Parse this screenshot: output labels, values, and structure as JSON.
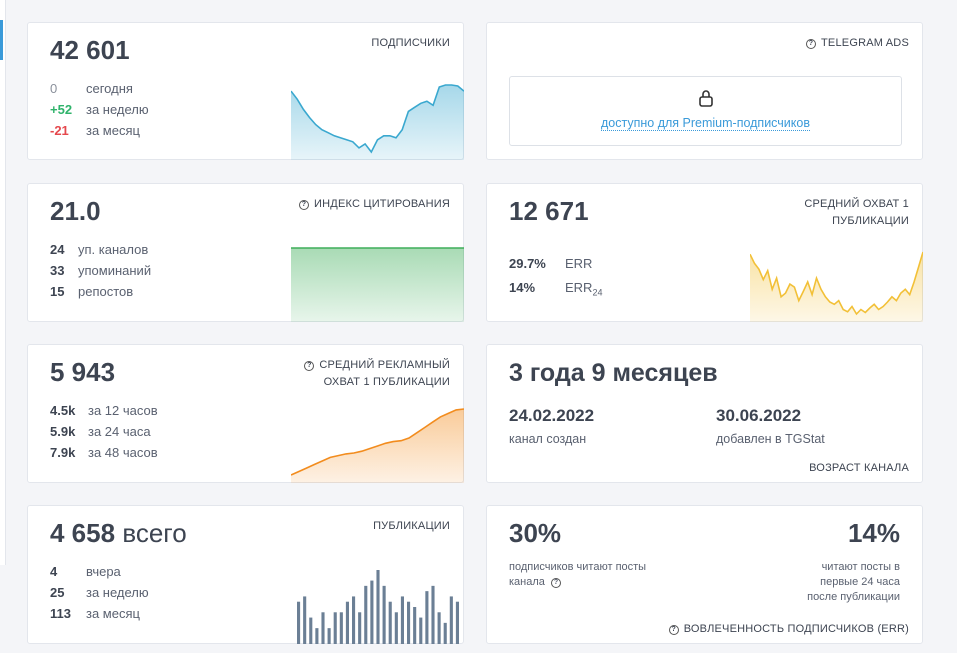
{
  "subscribers": {
    "value": "42 601",
    "title": "ПОДПИСЧИКИ",
    "stats": [
      {
        "value": "0",
        "label": "сегодня"
      },
      {
        "value": "+52",
        "label": "за неделю"
      },
      {
        "value": "-21",
        "label": "за месяц"
      }
    ],
    "chart": {
      "type": "area",
      "color": "#3aa8cf",
      "values": [
        78,
        70,
        60,
        52,
        45,
        40,
        37,
        34,
        32,
        30,
        28,
        22,
        26,
        18,
        30,
        34,
        34,
        32,
        40,
        58,
        62,
        66,
        68,
        64,
        82,
        84,
        84,
        83,
        78
      ]
    }
  },
  "ads": {
    "title": "TELEGRAM ADS",
    "link": "доступно для Premium-подписчиков"
  },
  "citation": {
    "value": "21.0",
    "title": "ИНДЕКС ЦИТИРОВАНИЯ",
    "stats": [
      {
        "value": "24",
        "label": "уп. каналов"
      },
      {
        "value": "33",
        "label": "упоминаний"
      },
      {
        "value": "15",
        "label": "репостов"
      }
    ],
    "chart": {
      "type": "area",
      "color": "#3fae5a",
      "values": [
        100,
        100,
        100,
        100,
        100,
        100
      ]
    }
  },
  "reach": {
    "value": "12 671",
    "title": "СРЕДНИЙ ОХВАТ 1 ПУБЛИКАЦИИ",
    "stats": [
      {
        "value": "29.7%",
        "label": "ERR"
      },
      {
        "value": "14%",
        "label": "ERR",
        "sub": "24"
      }
    ],
    "chart": {
      "type": "area",
      "color": "#f2c037",
      "values": [
        92,
        80,
        72,
        58,
        70,
        45,
        60,
        35,
        40,
        52,
        48,
        30,
        42,
        55,
        38,
        60,
        45,
        35,
        28,
        25,
        30,
        18,
        15,
        22,
        12,
        18,
        14,
        20,
        25,
        18,
        22,
        28,
        35,
        30,
        40,
        45,
        38,
        55,
        75,
        95
      ]
    }
  },
  "ad_reach": {
    "value": "5 943",
    "title": "СРЕДНИЙ РЕКЛАМНЫЙ ОХВАТ 1 ПУБЛИКАЦИИ",
    "stats": [
      {
        "value": "4.5k",
        "label": "за 12 часов"
      },
      {
        "value": "5.9k",
        "label": "за 24 часа"
      },
      {
        "value": "7.9k",
        "label": "за 48 часов"
      }
    ],
    "chart": {
      "type": "area",
      "color": "#f28c1e",
      "values": [
        2,
        6,
        10,
        14,
        18,
        22,
        24,
        26,
        27,
        29,
        32,
        35,
        38,
        40,
        41,
        44,
        50,
        56,
        62,
        68,
        72,
        76,
        77
      ]
    }
  },
  "age": {
    "value": "3 года 9 месяцев",
    "created": "24.02.2022",
    "created_label": "канал создан",
    "added": "30.06.2022",
    "added_label": "добавлен в TGStat",
    "title": "ВОЗРАСТ КАНАЛА"
  },
  "posts": {
    "value": "4 658",
    "unit": "всего",
    "title": "ПУБЛИКАЦИИ",
    "stats": [
      {
        "value": "4",
        "label": "вчера"
      },
      {
        "value": "25",
        "label": "за неделю"
      },
      {
        "value": "113",
        "label": "за месяц"
      }
    ],
    "chart": {
      "type": "bar",
      "color": "#6b7f95",
      "values": [
        40,
        45,
        25,
        15,
        30,
        15,
        30,
        30,
        40,
        45,
        30,
        55,
        60,
        70,
        55,
        40,
        30,
        45,
        40,
        35,
        25,
        50,
        55,
        30,
        20,
        45,
        40
      ]
    }
  },
  "engagement": {
    "left_value": "30%",
    "left_caption": "подписчиков читают посты канала",
    "right_value": "14%",
    "right_caption": "читают посты в первые 24 часа после публикации",
    "title": "ВОВЛЕЧЕННОСТЬ ПОДПИСЧИКОВ (ERR)"
  }
}
